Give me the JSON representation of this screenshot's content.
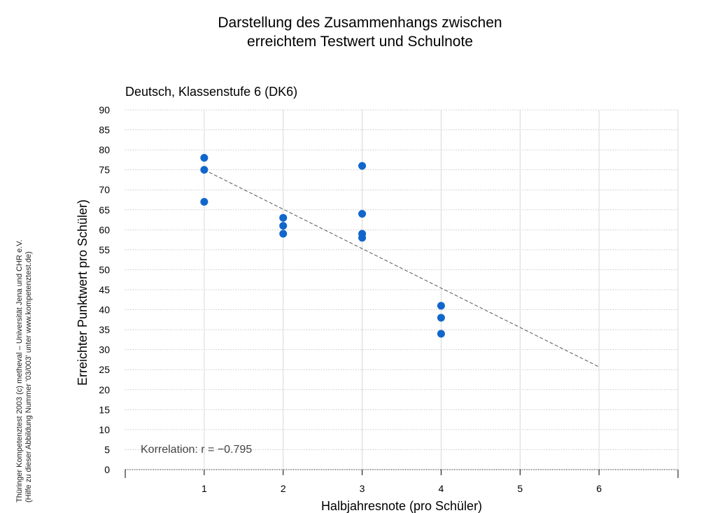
{
  "header": {
    "title_line1": "Darstellung des Zusammenhangs zwischen",
    "title_line2": "erreichtem Testwert und Schulnote",
    "subtitle": "Deutsch, Klassenstufe 6 (DK6)"
  },
  "side_note": {
    "line1": "Thüringer Kompetenztest 2003 (c) metheval – Universität Jena und CHR e.V.",
    "line2": "(Hilfe zu dieser Abbildung Nummer '03/003' unter www.kompetenztest.de)"
  },
  "chart_data": {
    "type": "scatter",
    "title": "Darstellung des Zusammenhangs zwischen erreichtem Testwert und Schulnote",
    "subtitle": "Deutsch, Klassenstufe 6 (DK6)",
    "xlabel": "Halbjahresnote (pro Schüler)",
    "ylabel": "Erreichter Punktwert pro Schüler)",
    "xlim": [
      0,
      7
    ],
    "ylim": [
      0,
      90
    ],
    "xticks": [
      1,
      2,
      3,
      4,
      5,
      6
    ],
    "yticks": [
      0,
      5,
      10,
      15,
      20,
      25,
      30,
      35,
      40,
      45,
      50,
      55,
      60,
      65,
      70,
      75,
      80,
      85,
      90
    ],
    "grid": true,
    "point_color": "#1166cc",
    "points": [
      {
        "x": 1,
        "y": 78
      },
      {
        "x": 1,
        "y": 75
      },
      {
        "x": 1,
        "y": 67
      },
      {
        "x": 2,
        "y": 63
      },
      {
        "x": 2,
        "y": 61
      },
      {
        "x": 2,
        "y": 59
      },
      {
        "x": 3,
        "y": 76
      },
      {
        "x": 3,
        "y": 64
      },
      {
        "x": 3,
        "y": 59
      },
      {
        "x": 3,
        "y": 58
      },
      {
        "x": 4,
        "y": 41
      },
      {
        "x": 4,
        "y": 38
      },
      {
        "x": 4,
        "y": 34
      }
    ],
    "trendline": {
      "x": [
        1,
        6
      ],
      "y": [
        75,
        25.7
      ]
    },
    "annotation": "Korrelation: r = −0.795"
  }
}
